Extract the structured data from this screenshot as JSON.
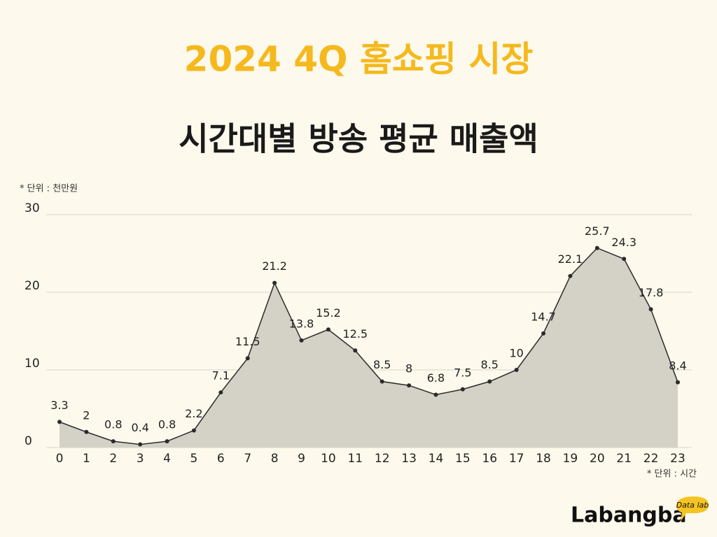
{
  "chart_data": {
    "type": "area",
    "title": "2024 4Q 홈쇼핑 시장",
    "subtitle": "시간대별 방송 평균 매출액",
    "y_label": "* 단위 : 천만원",
    "x_label": "* 단위 : 시간",
    "x": [
      0,
      1,
      2,
      3,
      4,
      5,
      6,
      7,
      8,
      9,
      10,
      11,
      12,
      13,
      14,
      15,
      16,
      17,
      18,
      19,
      20,
      21,
      22,
      23
    ],
    "values": [
      3.3,
      2,
      0.8,
      0.4,
      0.8,
      2.2,
      7.1,
      11.5,
      21.2,
      13.8,
      15.2,
      12.5,
      8.5,
      8,
      6.8,
      7.5,
      8.5,
      10,
      14.7,
      22.1,
      25.7,
      24.3,
      17.8,
      8.4
    ],
    "xlim": [
      0,
      23
    ],
    "xticks": [
      0,
      1,
      2,
      3,
      4,
      5,
      6,
      7,
      8,
      9,
      10,
      11,
      12,
      13,
      14,
      15,
      16,
      17,
      18,
      19,
      20,
      21,
      22,
      23
    ],
    "ylim": [
      0,
      30
    ],
    "yticks": [
      0,
      10,
      20,
      30
    ],
    "grid": true,
    "color": "#d4d1c7",
    "line_color": "#2b2b2b"
  },
  "logo": {
    "name": "Labangba",
    "tag": "Data lab"
  }
}
